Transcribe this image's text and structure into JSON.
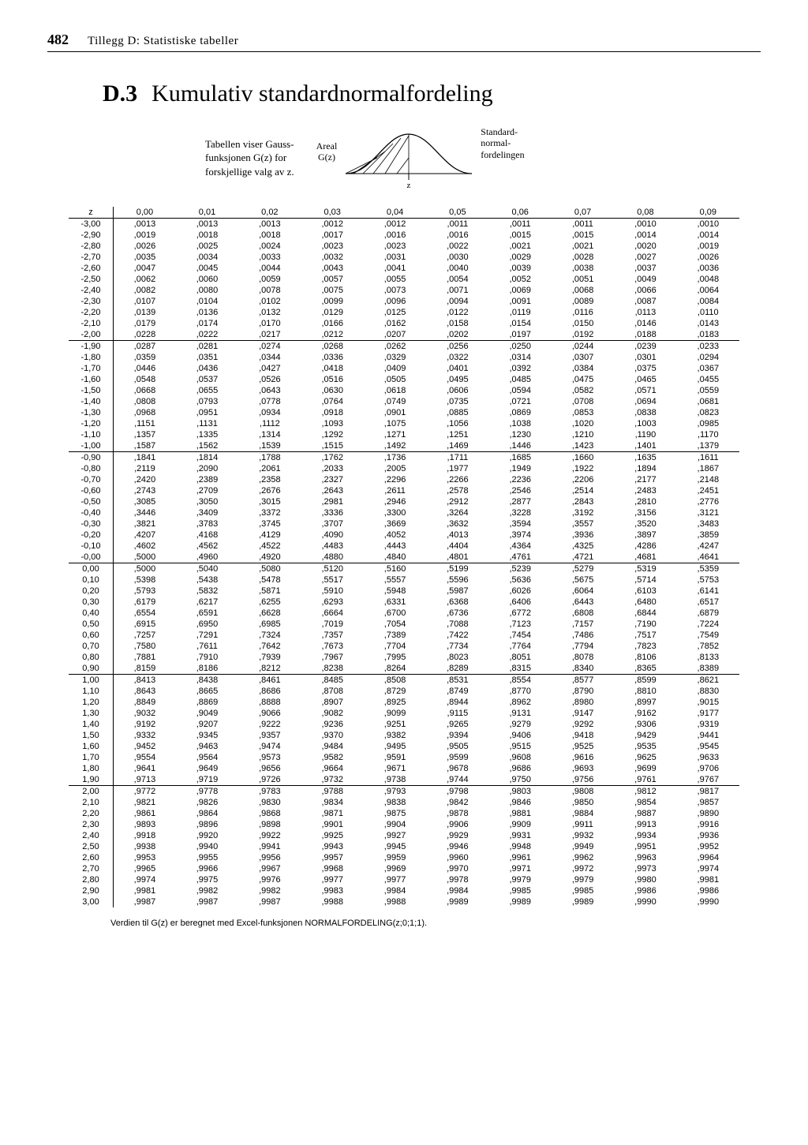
{
  "page_number": "482",
  "running_title": "Tillegg D: Statistiske tabeller",
  "section_label": "D.3",
  "section_title": "Kumulativ standardnormalfordeling",
  "intro_text_1": "Tabellen viser Gauss-",
  "intro_text_2": "funksjonen G(z) for",
  "intro_text_3": "forskjellige valg av z.",
  "diagram_left_1": "Areal",
  "diagram_left_2": "G(z)",
  "diagram_right_1": "Standard-",
  "diagram_right_2": "normal-",
  "diagram_right_3": "fordelingen",
  "axis_z": "z",
  "footnote": "Verdien til G(z) er beregnet med Excel-funksjonen NORMALFORDELING(z;0;1;1).",
  "table": {
    "columns": [
      "z",
      "0,00",
      "0,01",
      "0,02",
      "0,03",
      "0,04",
      "0,05",
      "0,06",
      "0,07",
      "0,08",
      "0,09"
    ],
    "groups": [
      [
        [
          "-3,00",
          ",0013",
          ",0013",
          ",0013",
          ",0012",
          ",0012",
          ",0011",
          ",0011",
          ",0011",
          ",0010",
          ",0010"
        ],
        [
          "-2,90",
          ",0019",
          ",0018",
          ",0018",
          ",0017",
          ",0016",
          ",0016",
          ",0015",
          ",0015",
          ",0014",
          ",0014"
        ],
        [
          "-2,80",
          ",0026",
          ",0025",
          ",0024",
          ",0023",
          ",0023",
          ",0022",
          ",0021",
          ",0021",
          ",0020",
          ",0019"
        ],
        [
          "-2,70",
          ",0035",
          ",0034",
          ",0033",
          ",0032",
          ",0031",
          ",0030",
          ",0029",
          ",0028",
          ",0027",
          ",0026"
        ],
        [
          "-2,60",
          ",0047",
          ",0045",
          ",0044",
          ",0043",
          ",0041",
          ",0040",
          ",0039",
          ",0038",
          ",0037",
          ",0036"
        ],
        [
          "-2,50",
          ",0062",
          ",0060",
          ",0059",
          ",0057",
          ",0055",
          ",0054",
          ",0052",
          ",0051",
          ",0049",
          ",0048"
        ],
        [
          "-2,40",
          ",0082",
          ",0080",
          ",0078",
          ",0075",
          ",0073",
          ",0071",
          ",0069",
          ",0068",
          ",0066",
          ",0064"
        ],
        [
          "-2,30",
          ",0107",
          ",0104",
          ",0102",
          ",0099",
          ",0096",
          ",0094",
          ",0091",
          ",0089",
          ",0087",
          ",0084"
        ],
        [
          "-2,20",
          ",0139",
          ",0136",
          ",0132",
          ",0129",
          ",0125",
          ",0122",
          ",0119",
          ",0116",
          ",0113",
          ",0110"
        ],
        [
          "-2,10",
          ",0179",
          ",0174",
          ",0170",
          ",0166",
          ",0162",
          ",0158",
          ",0154",
          ",0150",
          ",0146",
          ",0143"
        ],
        [
          "-2,00",
          ",0228",
          ",0222",
          ",0217",
          ",0212",
          ",0207",
          ",0202",
          ",0197",
          ",0192",
          ",0188",
          ",0183"
        ]
      ],
      [
        [
          "-1,90",
          ",0287",
          ",0281",
          ",0274",
          ",0268",
          ",0262",
          ",0256",
          ",0250",
          ",0244",
          ",0239",
          ",0233"
        ],
        [
          "-1,80",
          ",0359",
          ",0351",
          ",0344",
          ",0336",
          ",0329",
          ",0322",
          ",0314",
          ",0307",
          ",0301",
          ",0294"
        ],
        [
          "-1,70",
          ",0446",
          ",0436",
          ",0427",
          ",0418",
          ",0409",
          ",0401",
          ",0392",
          ",0384",
          ",0375",
          ",0367"
        ],
        [
          "-1,60",
          ",0548",
          ",0537",
          ",0526",
          ",0516",
          ",0505",
          ",0495",
          ",0485",
          ",0475",
          ",0465",
          ",0455"
        ],
        [
          "-1,50",
          ",0668",
          ",0655",
          ",0643",
          ",0630",
          ",0618",
          ",0606",
          ",0594",
          ",0582",
          ",0571",
          ",0559"
        ],
        [
          "-1,40",
          ",0808",
          ",0793",
          ",0778",
          ",0764",
          ",0749",
          ",0735",
          ",0721",
          ",0708",
          ",0694",
          ",0681"
        ],
        [
          "-1,30",
          ",0968",
          ",0951",
          ",0934",
          ",0918",
          ",0901",
          ",0885",
          ",0869",
          ",0853",
          ",0838",
          ",0823"
        ],
        [
          "-1,20",
          ",1151",
          ",1131",
          ",1112",
          ",1093",
          ",1075",
          ",1056",
          ",1038",
          ",1020",
          ",1003",
          ",0985"
        ],
        [
          "-1,10",
          ",1357",
          ",1335",
          ",1314",
          ",1292",
          ",1271",
          ",1251",
          ",1230",
          ",1210",
          ",1190",
          ",1170"
        ],
        [
          "-1,00",
          ",1587",
          ",1562",
          ",1539",
          ",1515",
          ",1492",
          ",1469",
          ",1446",
          ",1423",
          ",1401",
          ",1379"
        ]
      ],
      [
        [
          "-0,90",
          ",1841",
          ",1814",
          ",1788",
          ",1762",
          ",1736",
          ",1711",
          ",1685",
          ",1660",
          ",1635",
          ",1611"
        ],
        [
          "-0,80",
          ",2119",
          ",2090",
          ",2061",
          ",2033",
          ",2005",
          ",1977",
          ",1949",
          ",1922",
          ",1894",
          ",1867"
        ],
        [
          "-0,70",
          ",2420",
          ",2389",
          ",2358",
          ",2327",
          ",2296",
          ",2266",
          ",2236",
          ",2206",
          ",2177",
          ",2148"
        ],
        [
          "-0,60",
          ",2743",
          ",2709",
          ",2676",
          ",2643",
          ",2611",
          ",2578",
          ",2546",
          ",2514",
          ",2483",
          ",2451"
        ],
        [
          "-0,50",
          ",3085",
          ",3050",
          ",3015",
          ",2981",
          ",2946",
          ",2912",
          ",2877",
          ",2843",
          ",2810",
          ",2776"
        ],
        [
          "-0,40",
          ",3446",
          ",3409",
          ",3372",
          ",3336",
          ",3300",
          ",3264",
          ",3228",
          ",3192",
          ",3156",
          ",3121"
        ],
        [
          "-0,30",
          ",3821",
          ",3783",
          ",3745",
          ",3707",
          ",3669",
          ",3632",
          ",3594",
          ",3557",
          ",3520",
          ",3483"
        ],
        [
          "-0,20",
          ",4207",
          ",4168",
          ",4129",
          ",4090",
          ",4052",
          ",4013",
          ",3974",
          ",3936",
          ",3897",
          ",3859"
        ],
        [
          "-0,10",
          ",4602",
          ",4562",
          ",4522",
          ",4483",
          ",4443",
          ",4404",
          ",4364",
          ",4325",
          ",4286",
          ",4247"
        ],
        [
          "-0,00",
          ",5000",
          ",4960",
          ",4920",
          ",4880",
          ",4840",
          ",4801",
          ",4761",
          ",4721",
          ",4681",
          ",4641"
        ]
      ],
      [
        [
          "0,00",
          ",5000",
          ",5040",
          ",5080",
          ",5120",
          ",5160",
          ",5199",
          ",5239",
          ",5279",
          ",5319",
          ",5359"
        ],
        [
          "0,10",
          ",5398",
          ",5438",
          ",5478",
          ",5517",
          ",5557",
          ",5596",
          ",5636",
          ",5675",
          ",5714",
          ",5753"
        ],
        [
          "0,20",
          ",5793",
          ",5832",
          ",5871",
          ",5910",
          ",5948",
          ",5987",
          ",6026",
          ",6064",
          ",6103",
          ",6141"
        ],
        [
          "0,30",
          ",6179",
          ",6217",
          ",6255",
          ",6293",
          ",6331",
          ",6368",
          ",6406",
          ",6443",
          ",6480",
          ",6517"
        ],
        [
          "0,40",
          ",6554",
          ",6591",
          ",6628",
          ",6664",
          ",6700",
          ",6736",
          ",6772",
          ",6808",
          ",6844",
          ",6879"
        ],
        [
          "0,50",
          ",6915",
          ",6950",
          ",6985",
          ",7019",
          ",7054",
          ",7088",
          ",7123",
          ",7157",
          ",7190",
          ",7224"
        ],
        [
          "0,60",
          ",7257",
          ",7291",
          ",7324",
          ",7357",
          ",7389",
          ",7422",
          ",7454",
          ",7486",
          ",7517",
          ",7549"
        ],
        [
          "0,70",
          ",7580",
          ",7611",
          ",7642",
          ",7673",
          ",7704",
          ",7734",
          ",7764",
          ",7794",
          ",7823",
          ",7852"
        ],
        [
          "0,80",
          ",7881",
          ",7910",
          ",7939",
          ",7967",
          ",7995",
          ",8023",
          ",8051",
          ",8078",
          ",8106",
          ",8133"
        ],
        [
          "0,90",
          ",8159",
          ",8186",
          ",8212",
          ",8238",
          ",8264",
          ",8289",
          ",8315",
          ",8340",
          ",8365",
          ",8389"
        ]
      ],
      [
        [
          "1,00",
          ",8413",
          ",8438",
          ",8461",
          ",8485",
          ",8508",
          ",8531",
          ",8554",
          ",8577",
          ",8599",
          ",8621"
        ],
        [
          "1,10",
          ",8643",
          ",8665",
          ",8686",
          ",8708",
          ",8729",
          ",8749",
          ",8770",
          ",8790",
          ",8810",
          ",8830"
        ],
        [
          "1,20",
          ",8849",
          ",8869",
          ",8888",
          ",8907",
          ",8925",
          ",8944",
          ",8962",
          ",8980",
          ",8997",
          ",9015"
        ],
        [
          "1,30",
          ",9032",
          ",9049",
          ",9066",
          ",9082",
          ",9099",
          ",9115",
          ",9131",
          ",9147",
          ",9162",
          ",9177"
        ],
        [
          "1,40",
          ",9192",
          ",9207",
          ",9222",
          ",9236",
          ",9251",
          ",9265",
          ",9279",
          ",9292",
          ",9306",
          ",9319"
        ],
        [
          "1,50",
          ",9332",
          ",9345",
          ",9357",
          ",9370",
          ",9382",
          ",9394",
          ",9406",
          ",9418",
          ",9429",
          ",9441"
        ],
        [
          "1,60",
          ",9452",
          ",9463",
          ",9474",
          ",9484",
          ",9495",
          ",9505",
          ",9515",
          ",9525",
          ",9535",
          ",9545"
        ],
        [
          "1,70",
          ",9554",
          ",9564",
          ",9573",
          ",9582",
          ",9591",
          ",9599",
          ",9608",
          ",9616",
          ",9625",
          ",9633"
        ],
        [
          "1,80",
          ",9641",
          ",9649",
          ",9656",
          ",9664",
          ",9671",
          ",9678",
          ",9686",
          ",9693",
          ",9699",
          ",9706"
        ],
        [
          "1,90",
          ",9713",
          ",9719",
          ",9726",
          ",9732",
          ",9738",
          ",9744",
          ",9750",
          ",9756",
          ",9761",
          ",9767"
        ]
      ],
      [
        [
          "2,00",
          ",9772",
          ",9778",
          ",9783",
          ",9788",
          ",9793",
          ",9798",
          ",9803",
          ",9808",
          ",9812",
          ",9817"
        ],
        [
          "2,10",
          ",9821",
          ",9826",
          ",9830",
          ",9834",
          ",9838",
          ",9842",
          ",9846",
          ",9850",
          ",9854",
          ",9857"
        ],
        [
          "2,20",
          ",9861",
          ",9864",
          ",9868",
          ",9871",
          ",9875",
          ",9878",
          ",9881",
          ",9884",
          ",9887",
          ",9890"
        ],
        [
          "2,30",
          ",9893",
          ",9896",
          ",9898",
          ",9901",
          ",9904",
          ",9906",
          ",9909",
          ",9911",
          ",9913",
          ",9916"
        ],
        [
          "2,40",
          ",9918",
          ",9920",
          ",9922",
          ",9925",
          ",9927",
          ",9929",
          ",9931",
          ",9932",
          ",9934",
          ",9936"
        ],
        [
          "2,50",
          ",9938",
          ",9940",
          ",9941",
          ",9943",
          ",9945",
          ",9946",
          ",9948",
          ",9949",
          ",9951",
          ",9952"
        ],
        [
          "2,60",
          ",9953",
          ",9955",
          ",9956",
          ",9957",
          ",9959",
          ",9960",
          ",9961",
          ",9962",
          ",9963",
          ",9964"
        ],
        [
          "2,70",
          ",9965",
          ",9966",
          ",9967",
          ",9968",
          ",9969",
          ",9970",
          ",9971",
          ",9972",
          ",9973",
          ",9974"
        ],
        [
          "2,80",
          ",9974",
          ",9975",
          ",9976",
          ",9977",
          ",9977",
          ",9978",
          ",9979",
          ",9979",
          ",9980",
          ",9981"
        ],
        [
          "2,90",
          ",9981",
          ",9982",
          ",9982",
          ",9983",
          ",9984",
          ",9984",
          ",9985",
          ",9985",
          ",9986",
          ",9986"
        ],
        [
          "3,00",
          ",9987",
          ",9987",
          ",9987",
          ",9988",
          ",9988",
          ",9989",
          ",9989",
          ",9989",
          ",9990",
          ",9990"
        ]
      ]
    ]
  }
}
